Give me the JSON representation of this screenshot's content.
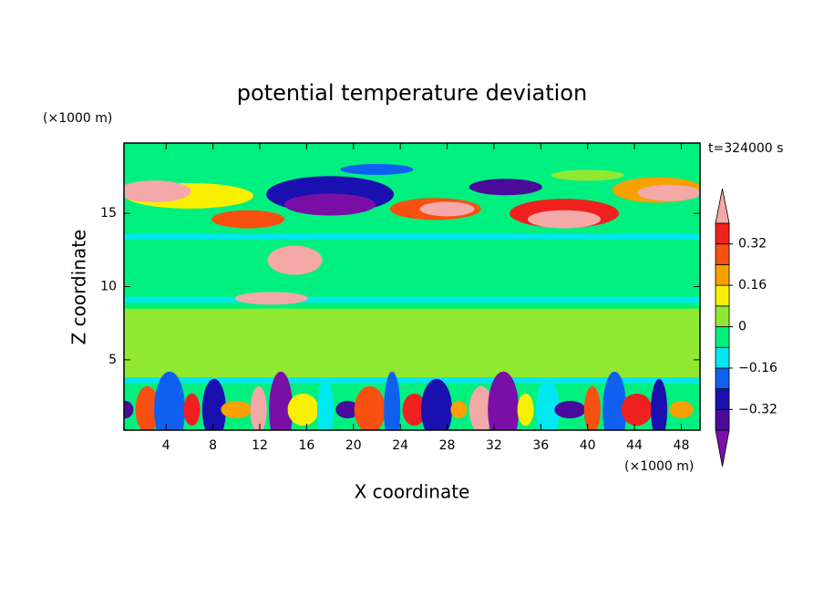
{
  "chart_data": {
    "type": "contour",
    "title": "potential temperature deviation",
    "x_label": "X coordinate",
    "y_label": "Z coordinate",
    "x_unit": "(×1000 m)",
    "y_unit": "(×1000 m)",
    "annotation": "t=324000 s",
    "xlim": [
      0.4,
      49.6
    ],
    "xticks": [
      4,
      8,
      12,
      16,
      20,
      24,
      28,
      32,
      36,
      40,
      44,
      48
    ],
    "ylim": [
      0.2,
      19.8
    ],
    "yticks": [
      5,
      10,
      15
    ],
    "levels": [
      -0.4,
      -0.32,
      -0.24,
      -0.16,
      -0.08,
      0,
      0.08,
      0.16,
      0.24,
      0.32,
      0.4
    ],
    "colorbar_ticks": [
      {
        "value": -0.32,
        "label": "−0.32"
      },
      {
        "value": -0.16,
        "label": "−0.16"
      },
      0,
      0.16,
      0.32
    ],
    "colors": [
      "#7a0fa8",
      "#4a0a9c",
      "#1a10b0",
      "#1060f0",
      "#00e8f0",
      "#00f080",
      "#90e830",
      "#f8f000",
      "#f8a000",
      "#f85010",
      "#f02020",
      "#f4a8a8"
    ]
  }
}
